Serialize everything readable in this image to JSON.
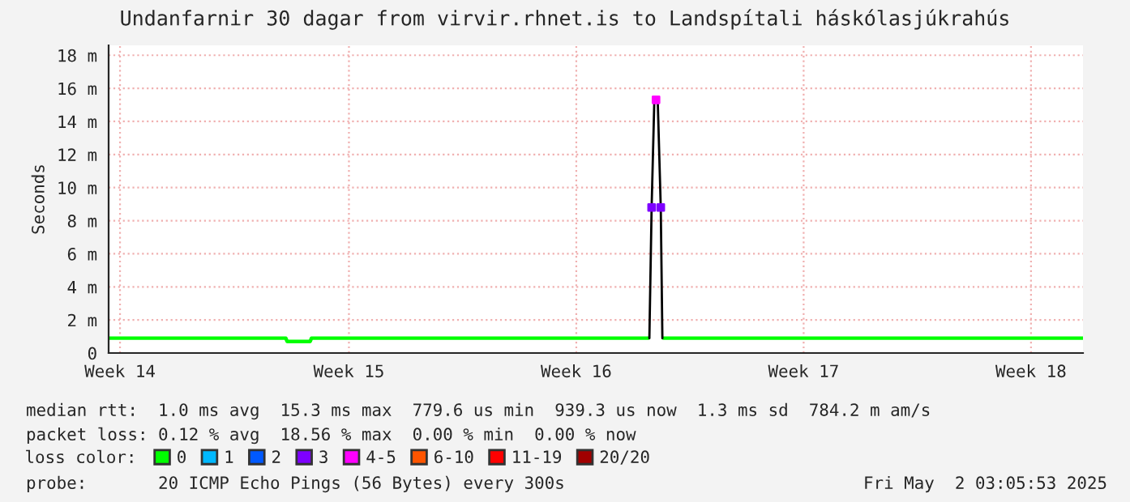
{
  "chart_data": {
    "type": "line",
    "title": "Undanfarnir 30 dagar from virvir.rhnet.is to Landspítali háskólasjúkrahús",
    "ylabel": "Seconds",
    "xlim": [
      "2025-04-02T03:05",
      "2025-05-02T03:05"
    ],
    "xticks": [
      {
        "value": "2025-04-02T11:30",
        "label": "Week 14"
      },
      {
        "value": "2025-04-09T12:40",
        "label": "Week 15"
      },
      {
        "value": "2025-04-16T12:40",
        "label": "Week 16"
      },
      {
        "value": "2025-04-23T12:40",
        "label": "Week 17"
      },
      {
        "value": "2025-04-30T12:40",
        "label": "Week 18"
      }
    ],
    "ylim": [
      0,
      18.6
    ],
    "yticks": [
      0,
      {
        "value": 2,
        "label": "2 m"
      },
      {
        "value": 4,
        "label": "4 m"
      },
      {
        "value": 6,
        "label": "6 m"
      },
      {
        "value": 8,
        "label": "8 m"
      },
      {
        "value": 10,
        "label": "10 m"
      },
      {
        "value": 12,
        "label": "12 m"
      },
      {
        "value": 14,
        "label": "14 m"
      },
      {
        "value": 16,
        "label": "16 m"
      },
      {
        "value": 18,
        "label": "18 m"
      }
    ],
    "grid": true,
    "legend": "bottom",
    "legend_title": "loss color:",
    "series": [
      {
        "name": "0",
        "color": "#00ff00",
        "x": [
          "2025-04-02T03:05",
          "2025-04-04T00:00",
          "2025-04-06T00:00",
          "2025-04-07T14:00",
          "2025-04-07T15:00",
          "2025-04-08T08:00",
          "2025-04-08T09:00",
          "2025-04-10T00:00",
          "2025-04-12T00:00",
          "2025-04-14T00:00",
          "2025-04-16T00:00",
          "2025-04-18T18:00",
          "2025-04-19T00:00",
          "2025-04-19T05:00",
          "2025-04-21T00:00",
          "2025-04-23T00:00",
          "2025-04-25T00:00",
          "2025-04-27T00:00",
          "2025-04-29T00:00",
          "2025-05-01T00:00",
          "2025-05-02T03:05"
        ],
        "values": [
          0.9,
          0.9,
          0.9,
          0.9,
          0.7,
          0.7,
          0.9,
          0.9,
          0.9,
          0.9,
          0.9,
          0.9,
          null,
          0.9,
          0.9,
          0.9,
          0.9,
          0.9,
          0.9,
          0.9,
          0.9
        ]
      },
      {
        "name": "1",
        "color": "#00b8ff"
      },
      {
        "name": "2",
        "color": "#0059ff"
      },
      {
        "name": "3",
        "color": "#7e00ff",
        "type": "scatter",
        "marker": "square",
        "x": [
          "2025-04-18T20:20",
          "2025-04-19T03:05"
        ],
        "values": [
          8.8,
          8.8
        ]
      },
      {
        "name": "4-5",
        "color": "#ff00ff",
        "type": "scatter",
        "marker": "square",
        "x": [
          "2025-04-18T23:35"
        ],
        "values": [
          15.3
        ]
      },
      {
        "name": "6-10",
        "color": "#ff5500"
      },
      {
        "name": "11-19",
        "color": "#ff0000"
      },
      {
        "name": "20/20",
        "color": "#a10000"
      },
      {
        "color": "#000000",
        "x": [
          "2025-04-18T18:40",
          "2025-04-18T20:20",
          "2025-04-18T22:20",
          "2025-04-19T00:50",
          "2025-04-19T03:05",
          "2025-04-19T04:17"
        ],
        "values": [
          0.9,
          8.8,
          15.3,
          15.3,
          8.8,
          0.9
        ]
      }
    ],
    "annotations": [
      "median rtt:  1.0 ms avg  15.3 ms max  779.6 us min  939.3 us now  1.3 ms sd  784.2 m am/s",
      "packet loss: 0.12 % avg  18.56 % max  0.00 % min  0.00 % now",
      "probe:       20 ICMP Echo Pings (56 Bytes) every 300s",
      "Fri May  2 03:05:53 2025"
    ]
  }
}
